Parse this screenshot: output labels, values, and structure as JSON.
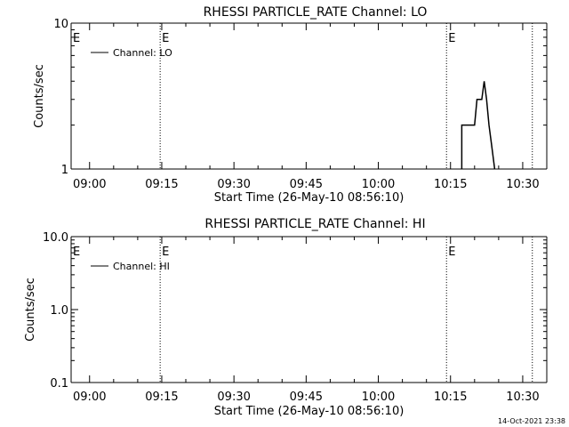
{
  "chart_data": [
    {
      "type": "line",
      "title": "RHESSI PARTICLE_RATE Channel: LO",
      "xlabel": "Start Time (26-May-10 08:56:10)",
      "ylabel": "Counts/sec",
      "y_scale": "log",
      "ylim": [
        1,
        10
      ],
      "xlim": [
        "08:56:10",
        "10:35:00"
      ],
      "x_tick_labels": [
        "09:00",
        "09:15",
        "09:30",
        "09:45",
        "10:00",
        "10:15",
        "10:30"
      ],
      "y_tick_labels": [
        "1",
        "10"
      ],
      "event_markers": [
        {
          "time": "09:14:40",
          "label": "E"
        },
        {
          "time": "10:14:10",
          "label": "E"
        },
        {
          "time": "10:32:00",
          "label": ""
        }
      ],
      "start_marker_label": "E",
      "legend": "top-left",
      "series": [
        {
          "name": "Channel: LO",
          "x": [
            "10:17:20",
            "10:17:20",
            "10:17:40",
            "10:20:00",
            "10:20:30",
            "10:21:30",
            "10:22:00",
            "10:22:30",
            "10:23:00",
            "10:23:30",
            "10:24:10"
          ],
          "y": [
            1,
            2,
            2,
            2,
            3,
            3,
            4,
            3,
            2,
            1.5,
            1
          ]
        }
      ]
    },
    {
      "type": "line",
      "title": "RHESSI PARTICLE_RATE Channel: HI",
      "xlabel": "Start Time (26-May-10 08:56:10)",
      "ylabel": "Counts/sec",
      "y_scale": "log",
      "ylim": [
        0.1,
        10
      ],
      "xlim": [
        "08:56:10",
        "10:35:00"
      ],
      "x_tick_labels": [
        "09:00",
        "09:15",
        "09:30",
        "09:45",
        "10:00",
        "10:15",
        "10:30"
      ],
      "y_tick_labels": [
        "0.1",
        "1.0",
        "10.0"
      ],
      "event_markers": [
        {
          "time": "09:14:40",
          "label": "E"
        },
        {
          "time": "10:14:10",
          "label": "E"
        },
        {
          "time": "10:32:00",
          "label": ""
        }
      ],
      "start_marker_label": "E",
      "legend": "top-left",
      "series": [
        {
          "name": "Channel: HI",
          "x": [],
          "y": []
        }
      ]
    }
  ],
  "footer": {
    "timestamp": "14-Oct-2021 23:38"
  }
}
